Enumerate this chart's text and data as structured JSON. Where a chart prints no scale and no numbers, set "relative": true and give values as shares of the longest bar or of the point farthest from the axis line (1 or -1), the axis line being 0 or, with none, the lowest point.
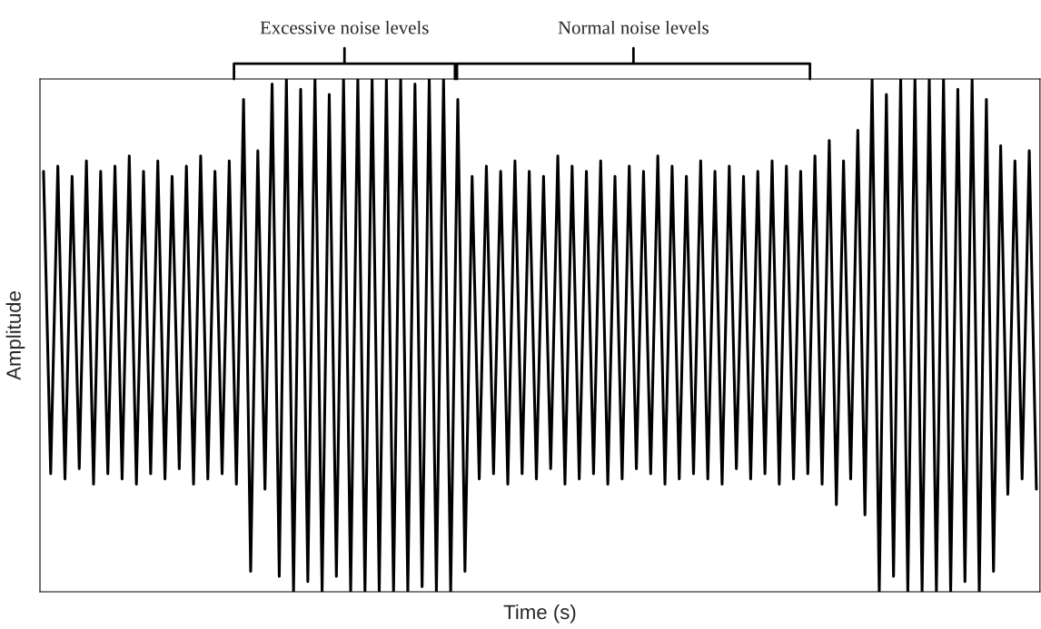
{
  "chart_data": {
    "type": "line",
    "relative": true,
    "xlabel": "Time (s)",
    "ylabel": "Amplitude",
    "color": "#000000",
    "annotations": [
      "Excessive noise levels",
      "Normal noise levels"
    ],
    "categories": [
      null,
      null,
      null,
      null,
      null,
      null,
      null,
      null,
      null,
      null,
      null,
      null,
      null,
      null,
      null,
      null,
      null,
      null,
      null,
      null,
      null,
      null,
      null,
      null,
      null,
      null,
      null,
      null,
      null,
      null,
      null,
      null,
      null,
      null,
      null,
      null,
      null,
      null,
      null,
      null,
      null,
      null,
      null,
      null,
      null,
      null,
      null,
      null,
      null,
      null,
      null,
      null,
      null,
      null,
      null,
      null,
      null,
      null,
      null,
      null,
      null,
      null,
      null,
      null,
      null,
      null,
      null,
      null,
      null,
      null,
      null,
      null,
      null,
      null,
      null,
      null,
      null,
      null,
      null,
      null,
      null,
      null,
      null,
      null,
      null,
      null,
      null,
      null,
      null,
      null,
      null,
      null,
      null,
      null,
      null,
      null,
      null,
      null,
      null,
      null,
      null,
      null,
      null,
      null,
      null,
      null,
      null,
      null,
      null,
      null,
      null,
      null,
      null,
      null,
      null,
      null,
      null,
      null,
      null,
      null,
      null,
      null,
      null,
      null,
      null,
      null,
      null,
      null,
      null,
      null,
      null,
      null,
      null,
      null,
      null,
      null,
      null,
      null,
      null,
      null
    ],
    "values": [
      0.82,
      0.23,
      0.83,
      0.22,
      0.81,
      0.24,
      0.84,
      0.21,
      0.82,
      0.23,
      0.83,
      0.22,
      0.85,
      0.21,
      0.82,
      0.23,
      0.84,
      0.22,
      0.81,
      0.24,
      0.83,
      0.21,
      0.85,
      0.22,
      0.82,
      0.23,
      0.84,
      0.21,
      0.96,
      0.04,
      0.86,
      0.2,
      0.99,
      0.03,
      1,
      0,
      0.98,
      0.02,
      1,
      0,
      0.97,
      0.03,
      1,
      0,
      1,
      0,
      1,
      0,
      1,
      0,
      1,
      0,
      0.99,
      0.01,
      1,
      0,
      1,
      0,
      0.96,
      0.04,
      0.81,
      0.22,
      0.83,
      0.23,
      0.82,
      0.21,
      0.84,
      0.23,
      0.82,
      0.22,
      0.81,
      0.24,
      0.85,
      0.21,
      0.83,
      0.22,
      0.82,
      0.23,
      0.84,
      0.21,
      0.81,
      0.22,
      0.83,
      0.24,
      0.82,
      0.23,
      0.85,
      0.21,
      0.83,
      0.22,
      0.81,
      0.23,
      0.84,
      0.22,
      0.82,
      0.21,
      0.83,
      0.24,
      0.81,
      0.22,
      0.82,
      0.23,
      0.84,
      0.21,
      0.83,
      0.22,
      0.82,
      0.23,
      0.85,
      0.21,
      0.88,
      0.17,
      0.84,
      0.22,
      0.9,
      0.15,
      1,
      0,
      0.97,
      0.03,
      1,
      0,
      1,
      0,
      1,
      0,
      1,
      0,
      0.98,
      0.02,
      1,
      0,
      0.96,
      0.04,
      0.87,
      0.19,
      0.84,
      0.22,
      0.86,
      0.2
    ]
  }
}
